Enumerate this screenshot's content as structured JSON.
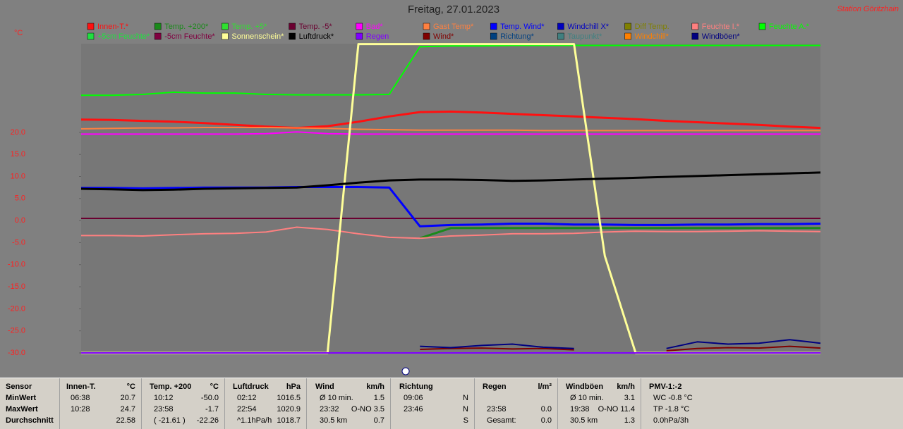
{
  "chart_data": {
    "type": "line",
    "title": "Freitag, 27.01.2023",
    "station": "Station Göritzhain",
    "unit": "°C",
    "ylim": [
      -30,
      40.1
    ],
    "yticks": [
      {
        "value": 20,
        "label": "20.0"
      },
      {
        "value": 15,
        "label": "15.0"
      },
      {
        "value": 10,
        "label": "10.0"
      },
      {
        "value": 5,
        "label": "5.0"
      },
      {
        "value": 0,
        "label": "0.0"
      },
      {
        "value": -5,
        "label": "-5.0"
      },
      {
        "value": -10,
        "label": "-10.0"
      },
      {
        "value": -15,
        "label": "-15.0"
      },
      {
        "value": -20,
        "label": "-20.0"
      },
      {
        "value": -25,
        "label": "-25.0"
      },
      {
        "value": -30,
        "label": "-30.0"
      }
    ],
    "series": [
      {
        "name": "Innen-T.*",
        "color": "#ff1010",
        "width": 3,
        "values": [
          22.9,
          22.8,
          22.6,
          22.4,
          22.1,
          21.7,
          21.3,
          21.0,
          21.4,
          22.4,
          23.6,
          24.6,
          24.7,
          24.5,
          24.2,
          23.9,
          23.6,
          23.3,
          23.0,
          22.6,
          22.3,
          22.0,
          21.7,
          21.3,
          21.0
        ]
      },
      {
        "name": "Temp. +200*",
        "color": "#1a8a1a",
        "width": 3,
        "values": [
          null,
          null,
          null,
          null,
          null,
          null,
          null,
          null,
          null,
          null,
          null,
          -4,
          -1.7,
          -1.7,
          -1.7,
          -1.7,
          -1.7,
          -1.7,
          -1.7,
          -1.7,
          -1.7,
          -1.7,
          -1.7,
          -1.7,
          -1.7
        ]
      },
      {
        "name": "Temp. +5*",
        "color": "#30e030"
      },
      {
        "name": "Temp. -5*",
        "color": "#6a0030",
        "width": 2,
        "values": [
          0.5,
          0.5,
          0.5,
          0.5,
          0.5,
          0.5,
          0.5,
          0.5,
          0.5,
          0.5,
          0.5,
          0.5,
          0.5,
          0.5,
          0.5,
          0.5,
          0.5,
          0.5,
          0.5,
          0.5,
          0.5,
          0.5,
          0.5,
          0.5,
          0.5
        ]
      },
      {
        "name": "Bad*",
        "color": "#ff00ff",
        "width": 2,
        "values": [
          19.6,
          19.6,
          19.6,
          19.6,
          19.6,
          19.6,
          19.7,
          20.1,
          19.7,
          19.6,
          19.6,
          19.6,
          19.6,
          19.6,
          19.6,
          19.6,
          19.6,
          19.6,
          19.6,
          19.6,
          19.6,
          19.6,
          19.6,
          19.6,
          19.6
        ]
      },
      {
        "name": "Gast Temp*",
        "color": "#ff8040",
        "width": 2,
        "values": [
          20.8,
          20.9,
          21.0,
          21.0,
          21.1,
          21.1,
          21.1,
          21.0,
          20.9,
          20.7,
          20.6,
          20.5,
          20.5,
          20.5,
          20.5,
          20.4,
          20.4,
          20.4,
          20.4,
          20.4,
          20.4,
          20.4,
          20.4,
          20.4,
          20.4
        ]
      },
      {
        "name": "Temp. Wind*",
        "color": "#0000ff",
        "width": 3,
        "values": [
          7.4,
          7.4,
          7.3,
          7.4,
          7.5,
          7.5,
          7.5,
          7.6,
          7.6,
          7.6,
          7.5,
          -1.3,
          -1.0,
          -0.9,
          -0.7,
          -0.7,
          -0.9,
          -0.9,
          -1.0,
          -1.0,
          -0.9,
          -0.9,
          -0.8,
          -0.8,
          -0.7
        ]
      },
      {
        "name": "Windchill X*",
        "color": "#0000c0"
      },
      {
        "name": "Diff Temp.",
        "color": "#808000"
      },
      {
        "name": "Feuchte I.*",
        "color": "#ff8080",
        "width": 2,
        "values": [
          -3.4,
          -3.4,
          -3.5,
          -3.2,
          -3.0,
          -2.9,
          -2.6,
          -1.5,
          -2.0,
          -3.0,
          -3.8,
          -4.0,
          -3.5,
          -3.3,
          -3.0,
          -3.0,
          -2.9,
          -2.6,
          -2.4,
          -2.5,
          -2.5,
          -2.4,
          -2.3,
          -2.4,
          -2.5
        ]
      },
      {
        "name": "Feuchte A.*",
        "color": "#00ff00",
        "width": 2,
        "values": [
          28.4,
          28.4,
          28.6,
          29.1,
          28.9,
          28.9,
          28.6,
          28.5,
          28.5,
          28.5,
          28.6,
          39.4,
          39.6,
          39.6,
          39.7,
          39.7,
          39.7,
          39.7,
          39.7,
          39.7,
          39.7,
          39.7,
          39.7,
          39.7,
          39.7
        ]
      },
      {
        "name": "+5cm Feuchte*",
        "color": "#20e040"
      },
      {
        "name": "-5cm Feuchte*",
        "color": "#800040"
      },
      {
        "name": "Sonnenschein*",
        "color": "#ffff99",
        "width": 3,
        "values": [
          -30,
          -30,
          -30,
          -30,
          -30,
          -30,
          -30,
          -30,
          -30,
          40,
          40,
          40,
          40,
          40,
          40,
          40,
          40,
          -8,
          -30,
          -30,
          -30,
          -30,
          -30,
          -30,
          -30
        ]
      },
      {
        "name": "Luftdruck*",
        "color": "#000000",
        "width": 3,
        "values": [
          7.2,
          7.1,
          6.9,
          7.0,
          7.2,
          7.3,
          7.4,
          7.5,
          8.0,
          8.6,
          9.1,
          9.3,
          9.3,
          9.2,
          9.0,
          9.1,
          9.3,
          9.5,
          9.7,
          9.9,
          10.1,
          10.3,
          10.5,
          10.7,
          10.9
        ]
      },
      {
        "name": "Regen",
        "color": "#8000ff",
        "width": 2,
        "values": [
          -30,
          -30,
          -30,
          -30,
          -30,
          -30,
          -30,
          -30,
          -30,
          -30,
          -30,
          -30,
          -30,
          -30,
          -30,
          -30,
          -30,
          -30,
          -30,
          -30,
          -30,
          -30,
          -30,
          -30,
          -30
        ]
      },
      {
        "name": "Wind*",
        "color": "#800000",
        "width": 2,
        "values": [
          null,
          null,
          null,
          null,
          null,
          null,
          null,
          null,
          null,
          null,
          null,
          -29.2,
          -29.0,
          -28.9,
          -29.1,
          -29.0,
          -29.3,
          null,
          null,
          -29.5,
          -29.0,
          -28.8,
          -28.9,
          -28.5,
          -28.9
        ]
      },
      {
        "name": "Richtung*",
        "color": "#004080"
      },
      {
        "name": "Taupunkt*",
        "color": "#408080"
      },
      {
        "name": "Windchill*",
        "color": "#ff8000"
      },
      {
        "name": "Windböen*",
        "color": "#000080",
        "width": 2,
        "values": [
          null,
          null,
          null,
          null,
          null,
          null,
          null,
          null,
          null,
          null,
          null,
          -28.5,
          -28.8,
          -28.3,
          -28.0,
          -28.7,
          -29.0,
          null,
          null,
          -29.0,
          -27.5,
          -28.0,
          -27.8,
          -27.0,
          -27.8
        ]
      }
    ]
  },
  "table": {
    "panels": [
      {
        "title": "Sensor",
        "rows": [
          {
            "left": "MinWert"
          },
          {
            "left": "MaxWert"
          },
          {
            "left": "Durchschnitt"
          }
        ]
      },
      {
        "title": "Innen-T.",
        "unit": "°C",
        "rows": [
          {
            "left": "06:38",
            "right": "20.7"
          },
          {
            "left": "10:28",
            "right": "24.7"
          },
          {
            "right": "22.58"
          }
        ]
      },
      {
        "title": "Temp. +200",
        "unit": "°C",
        "rows": [
          {
            "left": "10:12",
            "right": "-50.0"
          },
          {
            "left": "23:58",
            "right": "-1.7"
          },
          {
            "left": "( -21.61 )",
            "right": "-22.26"
          }
        ]
      },
      {
        "title": "Luftdruck",
        "unit": "hPa",
        "rows": [
          {
            "left": "02:12",
            "right": "1016.5"
          },
          {
            "left": "22:54",
            "right": "1020.9"
          },
          {
            "left": "^1.1hPa/h",
            "right": "1018.7"
          }
        ]
      },
      {
        "title": "Wind",
        "unit": "km/h",
        "rows": [
          {
            "left": "Ø 10 min.",
            "right": "1.5"
          },
          {
            "left": "23:32",
            "right": "O-NO 3.5"
          },
          {
            "left": "30.5 km",
            "right": "0.7"
          }
        ]
      },
      {
        "title": "Richtung",
        "rows": [
          {
            "left": "09:06",
            "right": "N"
          },
          {
            "left": "23:46",
            "right": "N"
          },
          {
            "right": "S"
          }
        ]
      },
      {
        "title": "Regen",
        "unit": "l/m²",
        "rows": [
          {},
          {
            "left": "23:58",
            "right": "0.0"
          },
          {
            "left": "Gesamt:",
            "right": "0.0"
          }
        ]
      },
      {
        "title": "Windböen",
        "unit": "km/h",
        "rows": [
          {
            "left": "Ø 10 min.",
            "right": "3.1"
          },
          {
            "left": "19:38",
            "right": "O-NO 11.4"
          },
          {
            "left": "30.5 km",
            "right": "1.3"
          }
        ]
      },
      {
        "title": "PMV-1:-2",
        "rows": [
          {
            "left": "WC -0.8 °C"
          },
          {
            "left": "TP -1.8 °C"
          },
          {
            "left": "0.0hPa/3h"
          }
        ]
      }
    ]
  }
}
